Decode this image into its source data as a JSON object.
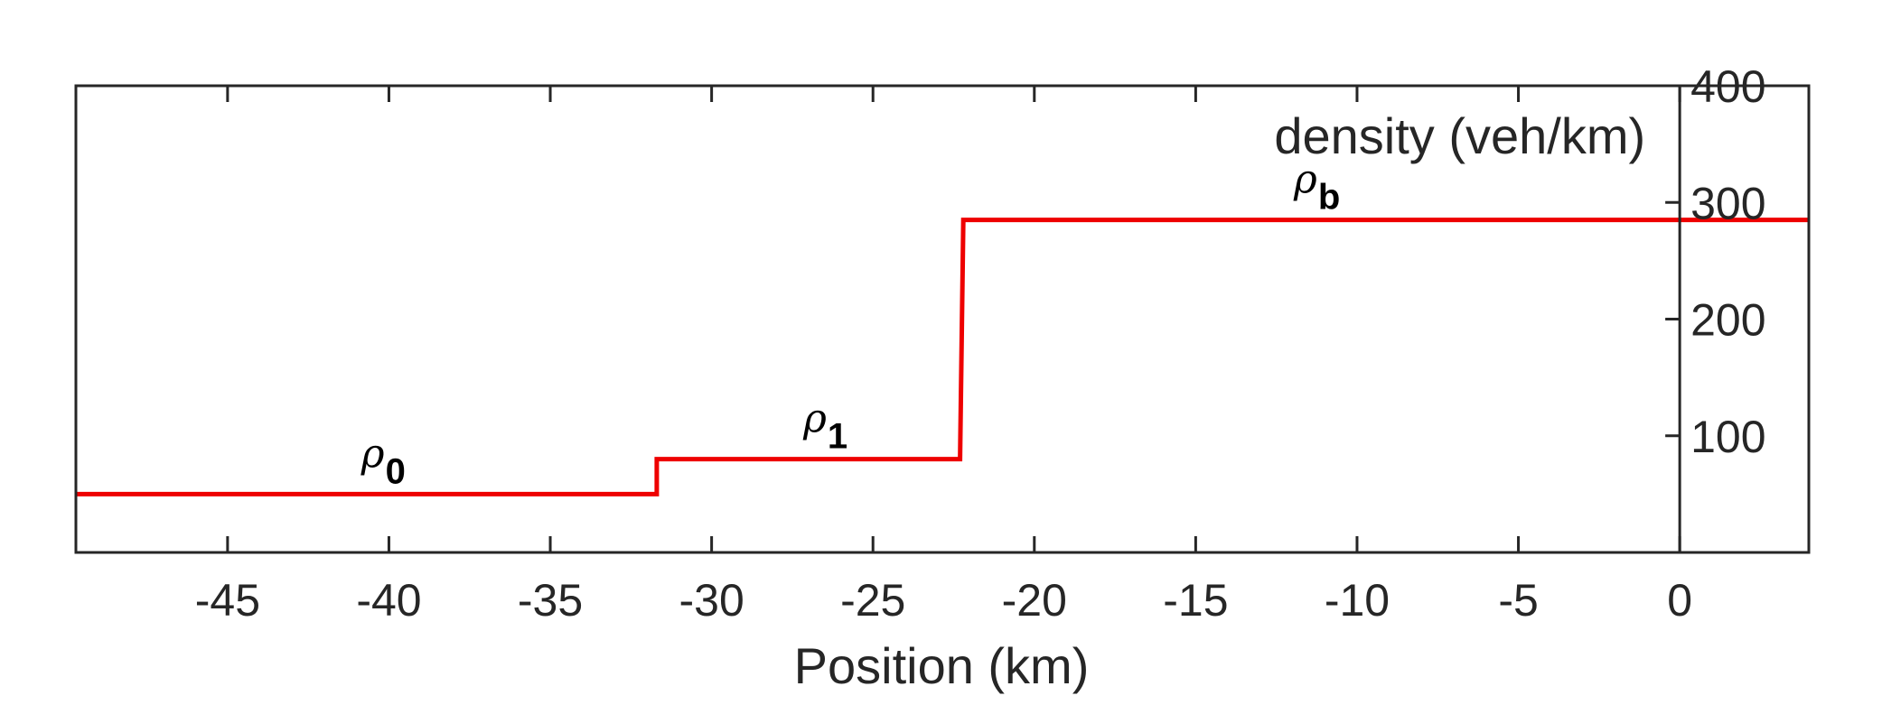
{
  "chart_data": {
    "type": "line",
    "title": "",
    "xlabel": "Position (km)",
    "ylabel": "density (veh/km)",
    "xlim": [
      -49.7,
      4.0
    ],
    "ylim": [
      0,
      400
    ],
    "x_ticks": [
      -45,
      -40,
      -35,
      -30,
      -25,
      -20,
      -15,
      -10,
      -5,
      0
    ],
    "x_tick_labels": [
      "-45",
      "-40",
      "-35",
      "-30",
      "-25",
      "-20",
      "-15",
      "-10",
      "-5",
      "0"
    ],
    "y_ticks": [
      100,
      200,
      300,
      400
    ],
    "y_tick_labels": [
      "100",
      "200",
      "300",
      "400"
    ],
    "y_axis_location": "x = 0",
    "grid": false,
    "line_color": "#ee0000",
    "series": [
      {
        "x": [
          -49.7,
          -31.7,
          -31.7,
          -22.3,
          -22.2,
          4.0
        ],
        "y": [
          50,
          50,
          80,
          80,
          285,
          285
        ]
      }
    ],
    "annotations": [
      {
        "symbol": "ρ",
        "subscript": "0",
        "x": -40.5,
        "y": 50
      },
      {
        "symbol": "ρ",
        "subscript": "1",
        "x": -26.8,
        "y": 80
      },
      {
        "symbol": "ρ",
        "subscript": "b",
        "x": -11.6,
        "y": 285
      }
    ]
  }
}
